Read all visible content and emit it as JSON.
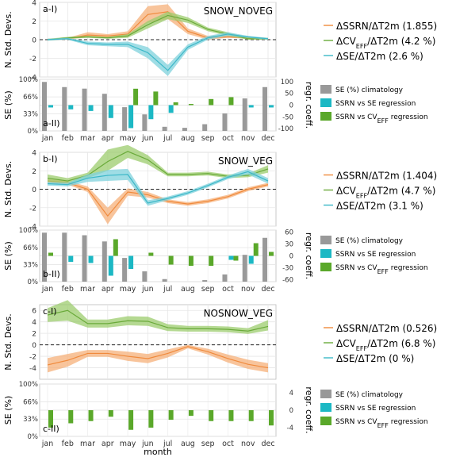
{
  "months": [
    "jan",
    "feb",
    "mar",
    "apr",
    "may",
    "jun",
    "jul",
    "aug",
    "sep",
    "oct",
    "nov",
    "dec"
  ],
  "x_axis_label": "month",
  "axis_labels": {
    "top_y": "N. Std. Devs.",
    "bottom_y": "SE (%)",
    "right_y": "regr. coeff."
  },
  "colors": {
    "ssrn": "#f08a3c",
    "ssrn_fill": "#f5b07a",
    "cv": "#6aaa3a",
    "cv_fill": "#9ccc6e",
    "se": "#3cb8c8",
    "se_fill": "#7fd2dc",
    "clim_bar": "#999999",
    "ssrn_se_bar": "#1cb8c4",
    "ssrn_cv_bar": "#5aa82a"
  },
  "panels": [
    {
      "id": "a",
      "top_label": "a-I)",
      "bottom_label": "a-II)",
      "title": "SNOW_NOVEG",
      "legend": {
        "ssrn": "ΔSSRN/ΔT2m (1.855)",
        "cv": "ΔCV_EFF/ΔT2m (4.2 %)",
        "se": "ΔSE/ΔT2m (2.6 %)"
      }
    },
    {
      "id": "b",
      "top_label": "b-I)",
      "bottom_label": "b-II)",
      "title": "SNOW_VEG",
      "legend": {
        "ssrn": "ΔSSRN/ΔT2m (1.404)",
        "cv": "ΔCV_EFF/ΔT2m (4.7 %)",
        "se": "ΔSE/ΔT2m (3.1 %)"
      }
    },
    {
      "id": "c",
      "top_label": "c-I)",
      "bottom_label": "c-II)",
      "title": "NOSNOW_VEG",
      "legend": {
        "ssrn": "ΔSSRN/ΔT2m (0.526)",
        "cv": "ΔCV_EFF/ΔT2m (6.8 %)",
        "se": "ΔSE/ΔT2m (0 %)"
      }
    }
  ],
  "bar_legend": {
    "clim": "SE (%) climatology",
    "ssrn_se": "SSRN  vs SE regression",
    "ssrn_cv": "SSRN vs CV_EFF regression"
  },
  "chart_data": [
    {
      "type": "line",
      "panel": "a-I)",
      "title": "SNOW_NOVEG",
      "x": [
        "jan",
        "feb",
        "mar",
        "apr",
        "may",
        "jun",
        "jul",
        "aug",
        "sep",
        "oct",
        "nov",
        "dec"
      ],
      "ylim": [
        -4,
        4
      ],
      "yticks": [
        -4,
        -2,
        0,
        2,
        4
      ],
      "series": [
        {
          "name": "ΔSSRN/ΔT2m (1.855)",
          "color": "ssrn",
          "values": [
            0,
            0.1,
            0.5,
            0.4,
            0.6,
            2.7,
            3.0,
            0.9,
            0.2,
            0.3,
            0.2,
            0.1
          ],
          "lower": [
            -0.1,
            0.0,
            0.3,
            0.2,
            0.3,
            1.8,
            2.2,
            0.6,
            0.0,
            0.2,
            0.1,
            0.0
          ],
          "upper": [
            0.1,
            0.2,
            0.8,
            0.6,
            0.9,
            3.6,
            3.8,
            1.2,
            0.4,
            0.5,
            0.3,
            0.2
          ]
        },
        {
          "name": "ΔCV_EFF/ΔT2m (4.2 %)",
          "color": "cv",
          "values": [
            0,
            0.2,
            0.3,
            0.2,
            0.4,
            1.6,
            2.6,
            2.1,
            1.1,
            0.6,
            0.1,
            0.1
          ],
          "lower": [
            -0.1,
            0.1,
            0.2,
            0.1,
            0.2,
            1.2,
            2.2,
            1.8,
            0.9,
            0.4,
            0.0,
            0.0
          ],
          "upper": [
            0.1,
            0.3,
            0.4,
            0.3,
            0.6,
            2.0,
            3.0,
            2.4,
            1.3,
            0.8,
            0.2,
            0.2
          ]
        },
        {
          "name": "ΔSE/ΔT2m (2.6 %)",
          "color": "se",
          "values": [
            0,
            0.1,
            -0.4,
            -0.5,
            -0.5,
            -1.4,
            -3.3,
            -0.8,
            0.2,
            0.6,
            0.3,
            0.1
          ],
          "lower": [
            -0.1,
            0.0,
            -0.6,
            -0.7,
            -0.8,
            -2.0,
            -3.9,
            -1.1,
            0.0,
            0.4,
            0.2,
            0.0
          ],
          "upper": [
            0.1,
            0.2,
            -0.2,
            -0.3,
            -0.2,
            -0.8,
            -2.7,
            -0.5,
            0.4,
            0.8,
            0.4,
            0.2
          ]
        }
      ]
    },
    {
      "type": "bar",
      "panel": "a-II)",
      "categories": [
        "jan",
        "feb",
        "mar",
        "apr",
        "may",
        "jun",
        "jul",
        "aug",
        "sep",
        "oct",
        "nov",
        "dec"
      ],
      "ylabel": "SE (%)",
      "ylim": [
        0,
        100
      ],
      "yticks": [
        0,
        33,
        66,
        100
      ],
      "y2label": "regr. coeff.",
      "y2lim": [
        -110,
        110
      ],
      "y2ticks": [
        -100,
        -50,
        0,
        50,
        100
      ],
      "series": [
        {
          "name": "SE (%) climatology",
          "axis": "left",
          "color": "clim_bar",
          "values": [
            95,
            85,
            82,
            72,
            46,
            32,
            8,
            6,
            13,
            34,
            63,
            85
          ]
        },
        {
          "name": "SSRN vs SE regression",
          "axis": "right",
          "color": "ssrn_se_bar",
          "values": [
            -10,
            -18,
            -25,
            -55,
            -98,
            -60,
            -33,
            0,
            0,
            0,
            -10,
            -10
          ]
        },
        {
          "name": "SSRN vs CV_EFF regression",
          "axis": "right",
          "color": "ssrn_cv_bar",
          "values": [
            0,
            0,
            0,
            0,
            70,
            58,
            12,
            5,
            26,
            34,
            0,
            0
          ]
        }
      ]
    },
    {
      "type": "line",
      "panel": "b-I)",
      "title": "SNOW_VEG",
      "x": [
        "jan",
        "feb",
        "mar",
        "apr",
        "may",
        "jun",
        "jul",
        "aug",
        "sep",
        "oct",
        "nov",
        "dec"
      ],
      "ylim": [
        -4,
        4
      ],
      "yticks": [
        -4,
        -2,
        0,
        2,
        4
      ],
      "series": [
        {
          "name": "ΔSSRN/ΔT2m (1.404)",
          "color": "ssrn",
          "values": [
            0.9,
            0.7,
            0.0,
            -2.9,
            -0.3,
            -0.6,
            -1.3,
            -1.6,
            -1.3,
            -0.8,
            0.0,
            0.5
          ],
          "lower": [
            0.7,
            0.5,
            -0.3,
            -3.8,
            -0.7,
            -0.9,
            -1.5,
            -1.8,
            -1.5,
            -1.0,
            -0.2,
            0.3
          ],
          "upper": [
            1.1,
            0.9,
            0.3,
            -2.0,
            0.1,
            -0.3,
            -1.1,
            -1.4,
            -1.1,
            -0.6,
            0.2,
            0.7
          ]
        },
        {
          "name": "ΔCV_EFF/ΔT2m (4.7 %)",
          "color": "cv",
          "values": [
            1.2,
            0.9,
            1.5,
            3.0,
            4.1,
            3.2,
            1.6,
            1.6,
            1.7,
            1.4,
            1.5,
            2.2
          ],
          "lower": [
            0.8,
            0.6,
            1.2,
            2.0,
            3.4,
            2.7,
            1.4,
            1.4,
            1.5,
            1.2,
            1.3,
            1.8
          ],
          "upper": [
            1.6,
            1.2,
            1.8,
            4.3,
            4.8,
            3.7,
            1.8,
            1.8,
            1.9,
            1.6,
            1.7,
            2.6
          ]
        },
        {
          "name": "ΔSE/ΔT2m (3.1 %)",
          "color": "se",
          "values": [
            0.6,
            0.5,
            1.2,
            1.5,
            1.6,
            -1.5,
            -1.0,
            -0.4,
            0.4,
            1.3,
            1.9,
            0.9
          ],
          "lower": [
            0.4,
            0.3,
            0.8,
            0.9,
            1.0,
            -1.8,
            -1.2,
            -0.6,
            0.2,
            1.1,
            1.6,
            0.6
          ],
          "upper": [
            0.8,
            0.7,
            1.6,
            2.1,
            2.2,
            -1.2,
            -0.8,
            -0.2,
            0.6,
            1.5,
            2.2,
            1.2
          ]
        }
      ]
    },
    {
      "type": "bar",
      "panel": "b-II)",
      "categories": [
        "jan",
        "feb",
        "mar",
        "apr",
        "may",
        "jun",
        "jul",
        "aug",
        "sep",
        "oct",
        "nov",
        "dec"
      ],
      "ylabel": "SE (%)",
      "ylim": [
        0,
        100
      ],
      "yticks": [
        0,
        33,
        66,
        100
      ],
      "y2label": "regr. coeff.",
      "y2lim": [
        -65,
        65
      ],
      "y2ticks": [
        -60,
        -30,
        0,
        30,
        60
      ],
      "series": [
        {
          "name": "SE (%) climatology",
          "axis": "left",
          "color": "clim_bar",
          "values": [
            95,
            95,
            90,
            78,
            46,
            20,
            5,
            0,
            3,
            14,
            52,
            85
          ]
        },
        {
          "name": "SSRN vs SE regression",
          "axis": "right",
          "color": "ssrn_se_bar",
          "values": [
            0,
            -15,
            -18,
            -50,
            -33,
            0,
            0,
            0,
            0,
            -10,
            -20,
            0
          ]
        },
        {
          "name": "SSRN vs CV_EFF regression",
          "axis": "right",
          "color": "ssrn_cv_bar",
          "values": [
            8,
            0,
            0,
            42,
            0,
            8,
            -22,
            -25,
            -25,
            -12,
            32,
            10
          ]
        }
      ]
    },
    {
      "type": "line",
      "panel": "c-I)",
      "title": "NOSNOW_VEG",
      "x": [
        "jan",
        "feb",
        "mar",
        "apr",
        "may",
        "jun",
        "jul",
        "aug",
        "sep",
        "oct",
        "nov",
        "dec"
      ],
      "ylim": [
        -6,
        7
      ],
      "yticks": [
        -4,
        -2,
        0,
        2,
        4,
        6
      ],
      "series": [
        {
          "name": "ΔSSRN/ΔT2m (0.526)",
          "color": "ssrn",
          "values": [
            -3.5,
            -2.7,
            -1.5,
            -1.5,
            -2.0,
            -2.4,
            -1.5,
            -0.3,
            -1.2,
            -2.4,
            -3.4,
            -4.0
          ],
          "lower": [
            -4.8,
            -3.8,
            -2.1,
            -2.1,
            -2.8,
            -3.2,
            -2.2,
            -0.6,
            -1.7,
            -3.1,
            -4.2,
            -4.8
          ],
          "upper": [
            -2.3,
            -1.6,
            -0.9,
            -0.9,
            -1.2,
            -1.6,
            -0.8,
            0.0,
            -0.7,
            -1.7,
            -2.6,
            -3.2
          ]
        },
        {
          "name": "ΔCV_EFF/ΔT2m (6.8 %)",
          "color": "cv",
          "values": [
            5.2,
            6.0,
            3.7,
            3.7,
            4.2,
            4.1,
            3.0,
            2.8,
            2.8,
            2.7,
            2.4,
            3.2
          ],
          "lower": [
            4.0,
            4.2,
            3.0,
            3.0,
            3.4,
            3.3,
            2.4,
            2.3,
            2.3,
            2.2,
            1.9,
            2.5
          ],
          "upper": [
            6.4,
            7.8,
            4.4,
            4.4,
            5.0,
            4.9,
            3.6,
            3.3,
            3.3,
            3.2,
            2.9,
            4.3
          ]
        },
        {
          "name": "ΔSE/ΔT2m (0 %)",
          "color": "se",
          "values": [
            0,
            0,
            0,
            0,
            0,
            0,
            0,
            0,
            0,
            0,
            0,
            0
          ],
          "lower": [
            0,
            0,
            0,
            0,
            0,
            0,
            0,
            0,
            0,
            0,
            0,
            0
          ],
          "upper": [
            0,
            0,
            0,
            0,
            0,
            0,
            0,
            0,
            0,
            0,
            0,
            0
          ]
        }
      ]
    },
    {
      "type": "bar",
      "panel": "c-II)",
      "categories": [
        "jan",
        "feb",
        "mar",
        "apr",
        "may",
        "jun",
        "jul",
        "aug",
        "sep",
        "oct",
        "nov",
        "dec"
      ],
      "ylabel": "SE (%)",
      "ylim": [
        0,
        100
      ],
      "yticks": [
        0,
        33,
        66,
        100
      ],
      "y2label": "regr. coeff.",
      "y2lim": [
        -6,
        6
      ],
      "y2ticks": [
        -4,
        0,
        4
      ],
      "series": [
        {
          "name": "SE (%) climatology",
          "axis": "left",
          "color": "clim_bar",
          "values": [
            0,
            0,
            0,
            0,
            0,
            0,
            0,
            0,
            0,
            0,
            0,
            0
          ]
        },
        {
          "name": "SSRN vs SE regression",
          "axis": "right",
          "color": "ssrn_se_bar",
          "values": [
            0,
            0,
            0,
            0,
            0,
            0,
            0,
            0,
            0,
            0,
            0,
            0
          ]
        },
        {
          "name": "SSRN vs CV_EFF regression",
          "axis": "right",
          "color": "ssrn_cv_bar",
          "values": [
            -4.0,
            -3.0,
            -2.5,
            -1.5,
            -4.5,
            -4.0,
            -2.2,
            -1.3,
            -2.5,
            -2.5,
            -2.5,
            -3.5
          ]
        }
      ]
    }
  ]
}
